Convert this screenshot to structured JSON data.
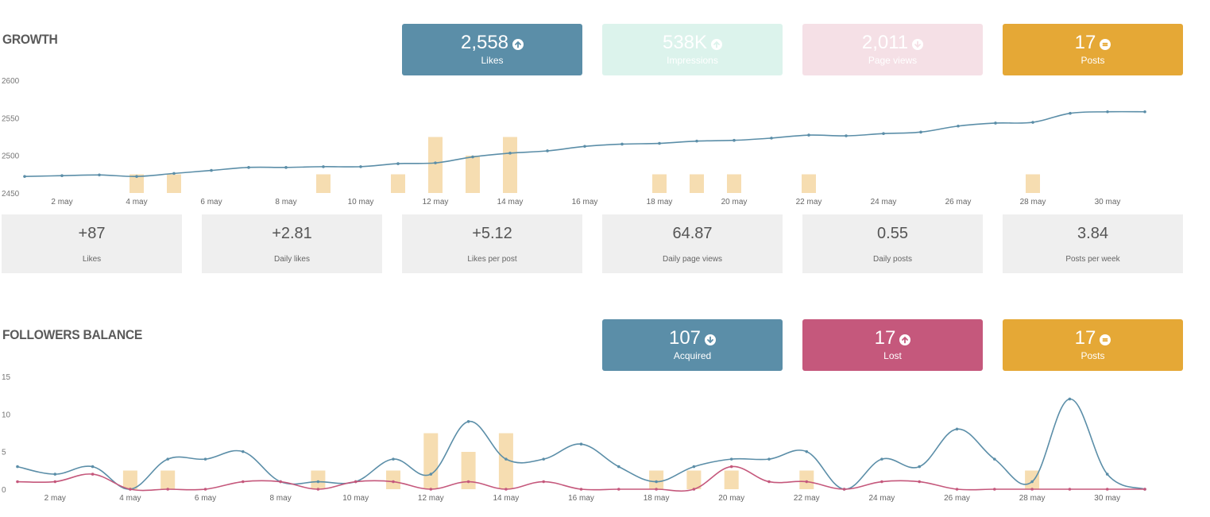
{
  "growth": {
    "title": "GROWTH",
    "kpis": [
      {
        "value": "2,558",
        "label": "Likes",
        "icon": "arrow-up-icon",
        "bg": "#5b8ea8",
        "fg": "#ffffff"
      },
      {
        "value": "538K",
        "label": "Impressions",
        "icon": "arrow-up-icon",
        "bg": "#dcf3ec",
        "fg": "#ffffff"
      },
      {
        "value": "2,011",
        "label": "Page views",
        "icon": "arrow-down-icon",
        "bg": "#f5e0e6",
        "fg": "#ffffff"
      },
      {
        "value": "17",
        "label": "Posts",
        "icon": "equals-icon",
        "bg": "#e5a836",
        "fg": "#ffffff"
      }
    ],
    "stats": [
      {
        "value": "+87",
        "label": "Likes"
      },
      {
        "value": "+2.81",
        "label": "Daily likes"
      },
      {
        "value": "+5.12",
        "label": "Likes per post"
      },
      {
        "value": "64.87",
        "label": "Daily page views"
      },
      {
        "value": "0.55",
        "label": "Daily posts"
      },
      {
        "value": "3.84",
        "label": "Posts per week"
      }
    ]
  },
  "followers": {
    "title": "FOLLOWERS BALANCE",
    "kpis": [
      {
        "value": "107",
        "label": "Acquired",
        "icon": "arrow-down-icon",
        "bg": "#5b8ea8",
        "fg": "#ffffff"
      },
      {
        "value": "17",
        "label": "Lost",
        "icon": "arrow-up-icon",
        "bg": "#c5587c",
        "fg": "#ffffff"
      },
      {
        "value": "17",
        "label": "Posts",
        "icon": "equals-icon",
        "bg": "#e5a836",
        "fg": "#ffffff"
      }
    ]
  },
  "chart_data": [
    {
      "type": "line",
      "title": "GROWTH",
      "x": [
        1,
        2,
        3,
        4,
        5,
        6,
        7,
        8,
        9,
        10,
        11,
        12,
        13,
        14,
        15,
        16,
        17,
        18,
        19,
        20,
        21,
        22,
        23,
        24,
        25,
        26,
        27,
        28,
        29,
        30,
        31
      ],
      "x_tick_labels": [
        "2 may",
        "4 may",
        "6 may",
        "8 may",
        "10 may",
        "12 may",
        "14 may",
        "16 may",
        "18 may",
        "20 may",
        "22 may",
        "24 may",
        "26 may",
        "28 may",
        "30 may"
      ],
      "x_tick_values": [
        2,
        4,
        6,
        8,
        10,
        12,
        14,
        16,
        18,
        20,
        22,
        24,
        26,
        28,
        30
      ],
      "y_ticks": [
        2450,
        2500,
        2550,
        2600
      ],
      "ylim": [
        2450,
        2600
      ],
      "series": [
        {
          "type": "line",
          "color": "#5b8ea8",
          "values": [
            2472,
            2473,
            2474,
            2472,
            2476,
            2480,
            2484,
            2484,
            2485,
            2485,
            2489,
            2490,
            2498,
            2503,
            2506,
            2512,
            2515,
            2516,
            2519,
            2520,
            2523,
            2527,
            2526,
            2529,
            2531,
            2539,
            2543,
            2544,
            2556,
            2558,
            2558
          ]
        },
        {
          "type": "bar",
          "color": "#f5d9a8",
          "values": [
            0,
            0,
            0,
            1,
            1,
            0,
            0,
            0,
            1,
            0,
            1,
            3,
            2,
            3,
            0,
            0,
            0,
            1,
            1,
            1,
            0,
            1,
            0,
            0,
            0,
            0,
            0,
            1,
            0,
            0,
            0
          ]
        }
      ],
      "grid": false
    },
    {
      "type": "line",
      "title": "FOLLOWERS BALANCE",
      "x": [
        1,
        2,
        3,
        4,
        5,
        6,
        7,
        8,
        9,
        10,
        11,
        12,
        13,
        14,
        15,
        16,
        17,
        18,
        19,
        20,
        21,
        22,
        23,
        24,
        25,
        26,
        27,
        28,
        29,
        30,
        31
      ],
      "x_tick_labels": [
        "2 may",
        "4 may",
        "6 may",
        "8 may",
        "10 may",
        "12 may",
        "14 may",
        "16 may",
        "18 may",
        "20 may",
        "22 may",
        "24 may",
        "26 may",
        "28 may",
        "30 may"
      ],
      "x_tick_values": [
        2,
        4,
        6,
        8,
        10,
        12,
        14,
        16,
        18,
        20,
        22,
        24,
        26,
        28,
        30
      ],
      "y_ticks": [
        0,
        5,
        10,
        15
      ],
      "ylim": [
        0,
        15
      ],
      "series": [
        {
          "type": "line",
          "color": "#5b8ea8",
          "values": [
            3,
            2,
            3,
            0,
            4,
            4,
            5,
            1,
            1,
            1,
            4,
            2,
            9,
            4,
            4,
            6,
            3,
            1,
            3,
            4,
            4,
            5,
            0,
            4,
            3,
            8,
            4,
            1,
            12,
            2,
            0
          ]
        },
        {
          "type": "line",
          "color": "#c5587c",
          "values": [
            1,
            1,
            2,
            0,
            0,
            0,
            1,
            1,
            0,
            1,
            1,
            0,
            1,
            0,
            1,
            0,
            0,
            0,
            0,
            3,
            1,
            1,
            0,
            1,
            1,
            0,
            0,
            0,
            0,
            0,
            0
          ]
        },
        {
          "type": "bar",
          "color": "#f5d9a8",
          "values": [
            0,
            0,
            0,
            1,
            1,
            0,
            0,
            0,
            1,
            0,
            1,
            3,
            2,
            3,
            0,
            0,
            0,
            1,
            1,
            1,
            0,
            1,
            0,
            0,
            0,
            0,
            0,
            1,
            0,
            0,
            0
          ]
        }
      ],
      "grid": false
    }
  ]
}
